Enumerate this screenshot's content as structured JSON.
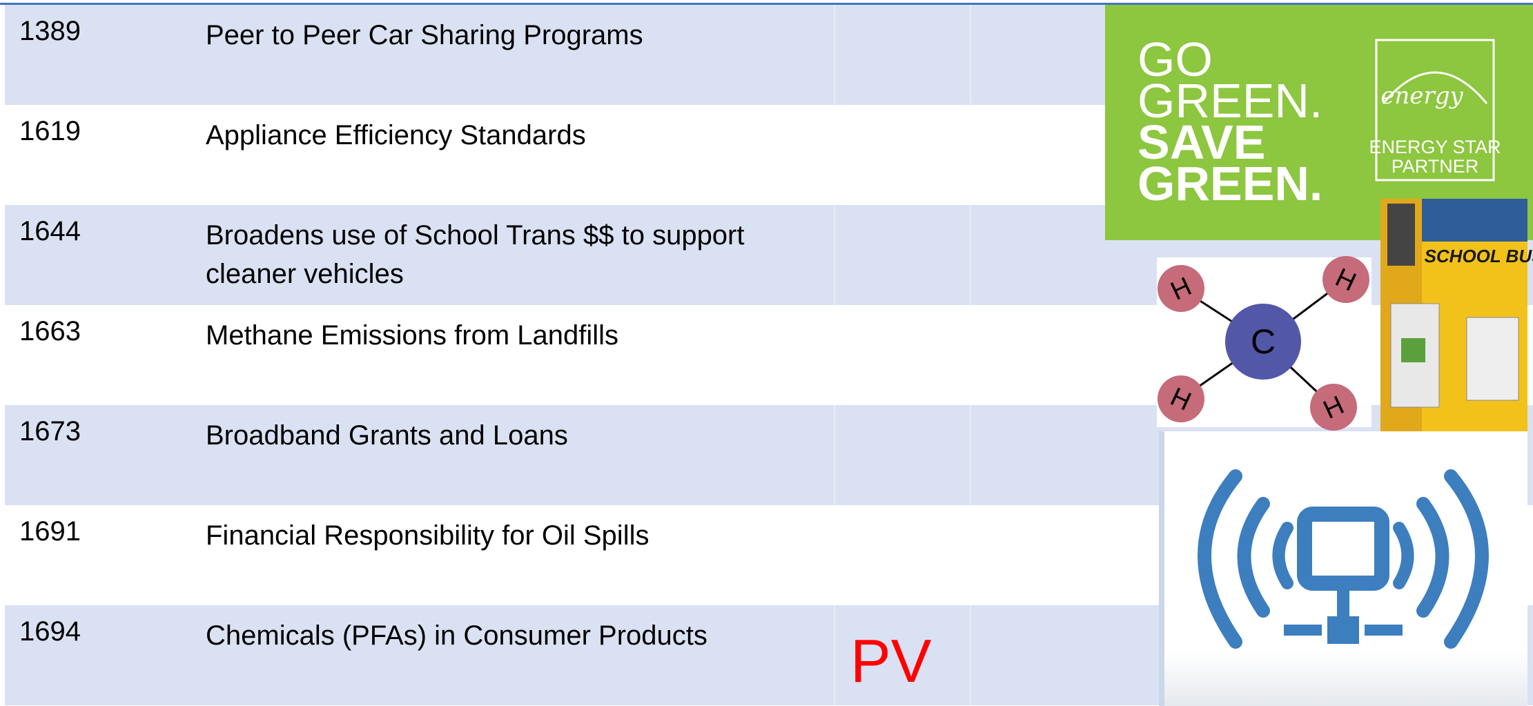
{
  "table": {
    "rows": [
      {
        "number": "1389",
        "title": "Peer to Peer Car Sharing Programs"
      },
      {
        "number": "1619",
        "title": "Appliance Efficiency Standards"
      },
      {
        "number": "1644",
        "title": "Broadens use of School Trans $$ to support cleaner vehicles"
      },
      {
        "number": "1663",
        "title": "Methane Emissions from Landfills"
      },
      {
        "number": "1673",
        "title": "Broadband Grants and Loans"
      },
      {
        "number": "1691",
        "title": "Financial Responsibility for Oil Spills"
      },
      {
        "number": "1694",
        "title": "Chemicals (PFAs) in Consumer Products",
        "note": "PV"
      }
    ]
  },
  "logo": {
    "line1": "GO",
    "line2": "GREEN.",
    "line3": "SAVE",
    "line4": "GREEN.",
    "badge_script": "energy",
    "badge_line1": "ENERGY STAR",
    "badge_line2": "PARTNER"
  },
  "molecule": {
    "center": "C",
    "atoms": [
      "H",
      "H",
      "H",
      "H"
    ]
  },
  "bus": {
    "sign": "SCHOOL BUS"
  }
}
